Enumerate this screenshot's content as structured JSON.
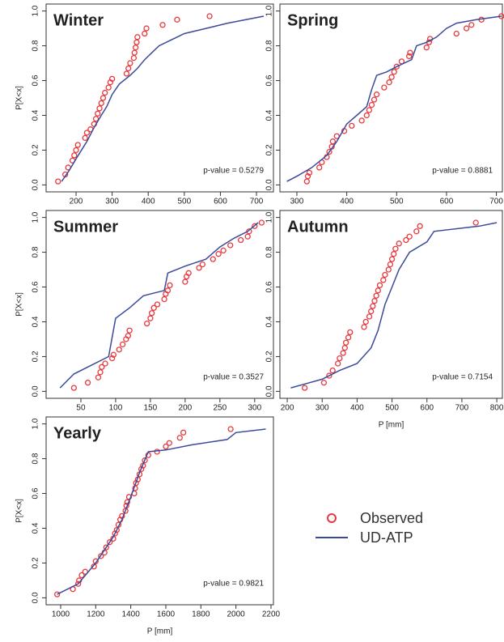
{
  "chart_data": [
    {
      "type": "scatter",
      "title": "Winter",
      "annotation": "p-value =  0.5279",
      "ylabel": "P[X<x]",
      "xlim": [
        117,
        747
      ],
      "ylim": [
        -0.04,
        1.04
      ],
      "xticks": [
        200,
        300,
        400,
        500,
        600,
        700
      ],
      "yticks": [
        {
          "value": 0,
          "label": "0.0"
        },
        0.2,
        0.4,
        0.6,
        0.8,
        {
          "value": 1,
          "label": "1.0"
        }
      ],
      "series": [
        {
          "name": "Observed",
          "color": "#e8383d",
          "marker": "circle",
          "x": [
            150,
            170,
            178,
            190,
            195,
            200,
            205,
            225,
            230,
            240,
            250,
            255,
            260,
            265,
            270,
            275,
            280,
            290,
            295,
            300,
            340,
            345,
            350,
            360,
            362,
            365,
            368,
            370,
            390,
            395,
            440,
            480,
            570
          ],
          "values": [
            0.02,
            0.06,
            0.1,
            0.14,
            0.17,
            0.2,
            0.23,
            0.27,
            0.3,
            0.32,
            0.35,
            0.38,
            0.41,
            0.44,
            0.47,
            0.5,
            0.53,
            0.56,
            0.59,
            0.61,
            0.64,
            0.67,
            0.7,
            0.73,
            0.76,
            0.79,
            0.82,
            0.85,
            0.87,
            0.9,
            0.92,
            0.95,
            0.97
          ]
        },
        {
          "name": "UD-ATP",
          "color": "#3a4a9a",
          "marker": "line",
          "x": [
            160,
            180,
            200,
            230,
            250,
            270,
            285,
            300,
            320,
            350,
            370,
            390,
            410,
            430,
            460,
            480,
            500,
            560,
            620,
            720
          ],
          "values": [
            0.02,
            0.08,
            0.15,
            0.25,
            0.33,
            0.4,
            0.45,
            0.52,
            0.58,
            0.63,
            0.67,
            0.72,
            0.76,
            0.8,
            0.83,
            0.85,
            0.87,
            0.9,
            0.93,
            0.97
          ]
        }
      ]
    },
    {
      "type": "scatter",
      "title": "Spring",
      "annotation": "p-value =  0.8881",
      "xlim": [
        266,
        712
      ],
      "ylim": [
        -0.04,
        1.04
      ],
      "xticks": [
        300,
        400,
        500,
        600,
        700
      ],
      "yticks": [
        {
          "value": 0,
          "label": "0.0"
        },
        0.2,
        0.4,
        0.6,
        0.8,
        {
          "value": 1,
          "label": "1.0"
        }
      ],
      "series": [
        {
          "name": "Observed",
          "color": "#e8383d",
          "marker": "circle",
          "x": [
            320,
            322,
            325,
            345,
            350,
            360,
            365,
            370,
            372,
            380,
            395,
            410,
            430,
            440,
            445,
            450,
            455,
            460,
            475,
            485,
            490,
            495,
            500,
            510,
            525,
            527,
            560,
            565,
            567,
            620,
            640,
            650,
            670,
            710
          ],
          "values": [
            0.02,
            0.05,
            0.07,
            0.1,
            0.13,
            0.16,
            0.19,
            0.22,
            0.25,
            0.28,
            0.31,
            0.34,
            0.37,
            0.4,
            0.43,
            0.46,
            0.49,
            0.52,
            0.56,
            0.59,
            0.62,
            0.65,
            0.68,
            0.71,
            0.74,
            0.76,
            0.79,
            0.82,
            0.84,
            0.87,
            0.9,
            0.92,
            0.95,
            0.97
          ]
        },
        {
          "name": "UD-ATP",
          "color": "#3a4a9a",
          "marker": "line",
          "x": [
            280,
            300,
            330,
            360,
            380,
            400,
            420,
            440,
            450,
            460,
            480,
            500,
            530,
            540,
            560,
            580,
            600,
            620,
            660,
            710
          ],
          "values": [
            0.02,
            0.05,
            0.1,
            0.17,
            0.25,
            0.35,
            0.4,
            0.45,
            0.55,
            0.63,
            0.65,
            0.68,
            0.72,
            0.8,
            0.82,
            0.85,
            0.9,
            0.93,
            0.95,
            0.97
          ]
        }
      ]
    },
    {
      "type": "scatter",
      "title": "Summer",
      "annotation": "p-value =  0.3527",
      "ylabel": "P[X<x]",
      "xlim": [
        0,
        327
      ],
      "ylim": [
        -0.04,
        1.04
      ],
      "xticks": [
        50,
        100,
        150,
        200,
        250,
        300
      ],
      "yticks": [
        {
          "value": 0,
          "label": "0.0"
        },
        0.2,
        0.4,
        0.6,
        0.8,
        {
          "value": 1,
          "label": "1.0"
        }
      ],
      "series": [
        {
          "name": "Observed",
          "color": "#e8383d",
          "marker": "circle",
          "x": [
            40,
            60,
            75,
            78,
            80,
            85,
            95,
            97,
            105,
            110,
            115,
            118,
            120,
            145,
            150,
            152,
            155,
            160,
            170,
            172,
            175,
            178,
            200,
            202,
            205,
            220,
            225,
            240,
            248,
            255,
            265,
            280,
            290,
            292,
            300,
            310
          ],
          "values": [
            0.02,
            0.05,
            0.08,
            0.11,
            0.14,
            0.16,
            0.19,
            0.21,
            0.24,
            0.27,
            0.3,
            0.32,
            0.35,
            0.39,
            0.42,
            0.45,
            0.48,
            0.5,
            0.53,
            0.56,
            0.58,
            0.61,
            0.63,
            0.66,
            0.68,
            0.71,
            0.73,
            0.76,
            0.79,
            0.81,
            0.84,
            0.87,
            0.89,
            0.92,
            0.95,
            0.97
          ]
        },
        {
          "name": "UD-ATP",
          "color": "#3a4a9a",
          "marker": "line",
          "x": [
            20,
            40,
            60,
            90,
            100,
            120,
            140,
            170,
            175,
            200,
            230,
            250,
            270,
            290,
            305
          ],
          "values": [
            0.02,
            0.1,
            0.14,
            0.2,
            0.42,
            0.48,
            0.55,
            0.58,
            0.68,
            0.72,
            0.76,
            0.83,
            0.88,
            0.92,
            0.97
          ]
        }
      ]
    },
    {
      "type": "scatter",
      "title": "Autumn",
      "annotation": "p-value =  0.7154",
      "xlabel": "P [mm]",
      "xlim": [
        179,
        816
      ],
      "ylim": [
        -0.04,
        1.04
      ],
      "xticks": [
        200,
        300,
        400,
        500,
        600,
        700,
        800
      ],
      "yticks": [
        {
          "value": 0,
          "label": "0.0"
        },
        0.2,
        0.4,
        0.6,
        0.8,
        {
          "value": 1,
          "label": "1.0"
        }
      ],
      "series": [
        {
          "name": "Observed",
          "color": "#e8383d",
          "marker": "circle",
          "x": [
            250,
            305,
            320,
            330,
            345,
            350,
            360,
            365,
            368,
            375,
            380,
            420,
            425,
            435,
            440,
            445,
            450,
            455,
            460,
            465,
            475,
            480,
            490,
            495,
            500,
            505,
            510,
            520,
            540,
            550,
            570,
            580,
            740
          ],
          "values": [
            0.02,
            0.05,
            0.09,
            0.12,
            0.16,
            0.19,
            0.22,
            0.25,
            0.28,
            0.31,
            0.34,
            0.37,
            0.4,
            0.43,
            0.46,
            0.49,
            0.52,
            0.55,
            0.58,
            0.61,
            0.64,
            0.67,
            0.7,
            0.73,
            0.76,
            0.79,
            0.82,
            0.85,
            0.87,
            0.89,
            0.92,
            0.95,
            0.97
          ]
        },
        {
          "name": "UD-ATP",
          "color": "#3a4a9a",
          "marker": "line",
          "x": [
            210,
            300,
            350,
            400,
            440,
            460,
            480,
            500,
            520,
            550,
            600,
            620,
            750,
            800
          ],
          "values": [
            0.02,
            0.07,
            0.12,
            0.16,
            0.25,
            0.35,
            0.5,
            0.6,
            0.7,
            0.8,
            0.86,
            0.92,
            0.95,
            0.97
          ]
        }
      ]
    },
    {
      "type": "scatter",
      "title": "Yearly",
      "annotation": "p-value =  0.9821",
      "ylabel": "P[X<x]",
      "xlabel": "P [mm]",
      "xlim": [
        917,
        2214
      ],
      "ylim": [
        -0.04,
        1.04
      ],
      "xticks": [
        1000,
        1200,
        1400,
        1600,
        1800,
        2000,
        2200
      ],
      "yticks": [
        {
          "value": 0,
          "label": "0.0"
        },
        0.2,
        0.4,
        0.6,
        0.8,
        {
          "value": 1,
          "label": "1.0"
        }
      ],
      "series": [
        {
          "name": "Observed",
          "color": "#e8383d",
          "marker": "circle",
          "x": [
            980,
            1070,
            1100,
            1105,
            1120,
            1140,
            1190,
            1200,
            1230,
            1250,
            1260,
            1280,
            1300,
            1310,
            1320,
            1330,
            1340,
            1350,
            1370,
            1375,
            1380,
            1390,
            1420,
            1425,
            1430,
            1440,
            1450,
            1460,
            1470,
            1480,
            1500,
            1550,
            1600,
            1620,
            1680,
            1700,
            1970
          ],
          "values": [
            0.02,
            0.05,
            0.08,
            0.1,
            0.13,
            0.15,
            0.18,
            0.21,
            0.24,
            0.26,
            0.29,
            0.32,
            0.34,
            0.37,
            0.39,
            0.42,
            0.45,
            0.47,
            0.5,
            0.53,
            0.55,
            0.58,
            0.6,
            0.63,
            0.66,
            0.68,
            0.71,
            0.74,
            0.76,
            0.79,
            0.82,
            0.84,
            0.87,
            0.89,
            0.92,
            0.95,
            0.97
          ]
        },
        {
          "name": "UD-ATP",
          "color": "#3a4a9a",
          "marker": "line",
          "x": [
            980,
            1100,
            1200,
            1300,
            1350,
            1400,
            1450,
            1500,
            1600,
            1750,
            1950,
            2000,
            2170
          ],
          "values": [
            0.02,
            0.08,
            0.2,
            0.35,
            0.45,
            0.58,
            0.72,
            0.84,
            0.85,
            0.88,
            0.91,
            0.95,
            0.97
          ]
        }
      ]
    }
  ]
}
